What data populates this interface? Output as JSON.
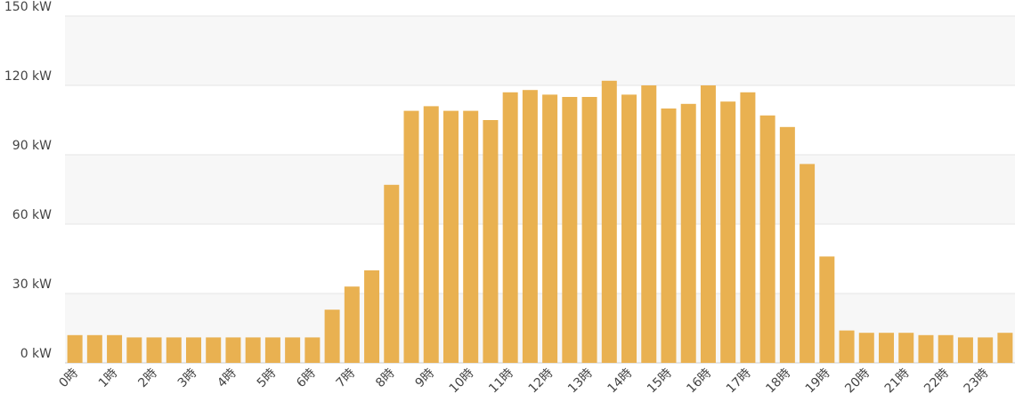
{
  "chart_data": {
    "type": "bar",
    "categories": [
      "0時",
      null,
      "1時",
      null,
      "2時",
      null,
      "3時",
      null,
      "4時",
      null,
      "5時",
      null,
      "6時",
      null,
      "7時",
      null,
      "8時",
      null,
      "9時",
      null,
      "10時",
      null,
      "11時",
      null,
      "12時",
      null,
      "13時",
      null,
      "14時",
      null,
      "15時",
      null,
      "16時",
      null,
      "17時",
      null,
      "18時",
      null,
      "19時",
      null,
      "20時",
      null,
      "21時",
      null,
      "22時",
      null,
      "23時",
      null
    ],
    "values": [
      12,
      12,
      12,
      11,
      11,
      11,
      11,
      11,
      11,
      11,
      11,
      11,
      11,
      23,
      33,
      40,
      77,
      109,
      111,
      109,
      109,
      105,
      117,
      118,
      116,
      115,
      115,
      122,
      116,
      120,
      110,
      112,
      120,
      113,
      117,
      107,
      102,
      86,
      46,
      14,
      13,
      13,
      13,
      12,
      12,
      11,
      11,
      13
    ],
    "color": "#e9b151",
    "ylim": [
      0,
      150
    ],
    "yticks": [
      {
        "value": 0,
        "label": "0 kW"
      },
      {
        "value": 30,
        "label": "30 kW"
      },
      {
        "value": 60,
        "label": "60 kW"
      },
      {
        "value": 90,
        "label": "90 kW"
      },
      {
        "value": 120,
        "label": "120 kW"
      },
      {
        "value": 150,
        "label": "150 kW"
      }
    ],
    "grid": true
  }
}
